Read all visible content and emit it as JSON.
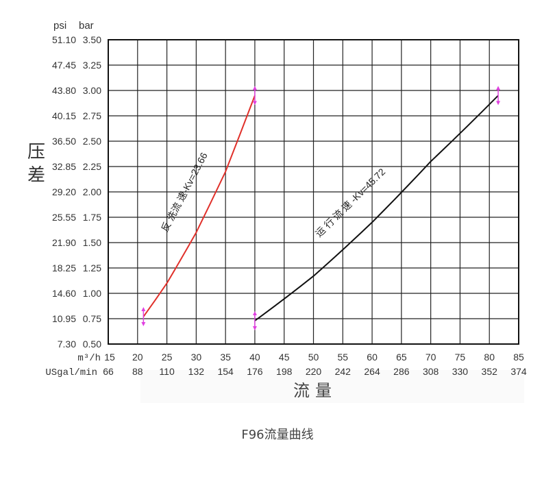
{
  "caption": "F96流量曲线",
  "chart_data": {
    "type": "line",
    "title": "",
    "ylabel": "压差",
    "xlabel": "流量",
    "y_units": {
      "left": "psi",
      "right": "bar"
    },
    "x_units": {
      "primary": "m³/h",
      "secondary": "USgal/min"
    },
    "xlim": [
      15,
      85
    ],
    "ylim": [
      0.5,
      3.5
    ],
    "grid": true,
    "x_ticks": [
      15,
      20,
      25,
      30,
      35,
      40,
      45,
      50,
      55,
      60,
      65,
      70,
      75,
      80,
      85
    ],
    "x_ticks_secondary": [
      "66",
      "88",
      "110",
      "132",
      "154",
      "176",
      "198",
      "220",
      "242",
      "264",
      "286",
      "308",
      "330",
      "352",
      "374"
    ],
    "y_ticks_bar": [
      "0.50",
      "0.75",
      "1.00",
      "1.25",
      "1.50",
      "1.75",
      "2.00",
      "2.25",
      "2.50",
      "2.75",
      "3.00",
      "3.25",
      "3.50"
    ],
    "y_ticks_psi": [
      "7.30",
      "10.95",
      "14.60",
      "18.25",
      "21.90",
      "25.55",
      "29.20",
      "32.85",
      "36.50",
      "40.15",
      "43.80",
      "47.45",
      "51.10"
    ],
    "series": [
      {
        "name": "反 洗流 速-Kv=23.66",
        "color": "#e0302a",
        "x": [
          21,
          25,
          30,
          35,
          40
        ],
        "y": [
          0.77,
          1.1,
          1.6,
          2.2,
          2.95
        ]
      },
      {
        "name": "运 行 流 速 -Kv=45.72",
        "color": "#111111",
        "x": [
          40,
          50,
          60,
          70,
          81.5
        ],
        "y": [
          0.73,
          1.17,
          1.7,
          2.3,
          2.95
        ]
      }
    ],
    "marker_color": "#e040e0"
  }
}
